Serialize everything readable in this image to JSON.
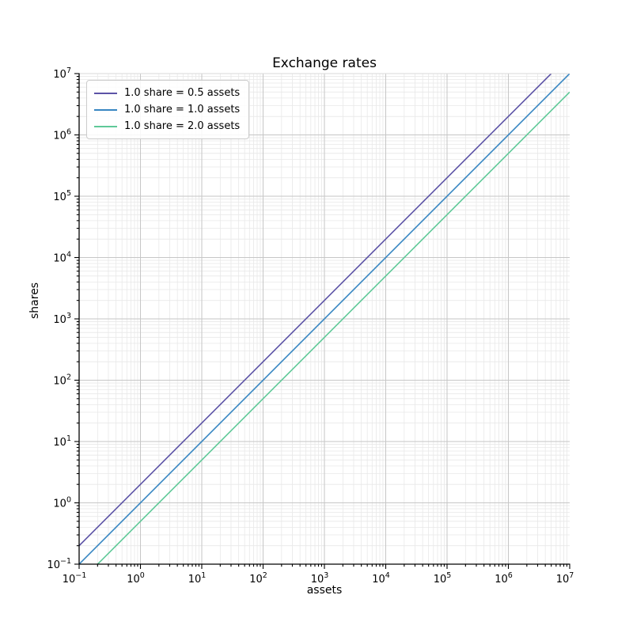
{
  "chart_data": {
    "type": "line",
    "title": "Exchange rates",
    "xlabel": "assets",
    "ylabel": "shares",
    "x_scale": "log",
    "y_scale": "log",
    "xlim": [
      0.1,
      10000000
    ],
    "ylim": [
      0.1,
      10000000
    ],
    "tick_exponents": [
      -1,
      0,
      1,
      2,
      3,
      4,
      5,
      6,
      7
    ],
    "grid": {
      "major": true,
      "minor": true,
      "major_color": "#c6c6c6",
      "minor_color": "#e8e8e8"
    },
    "legend_position": "upper left",
    "series": [
      {
        "label": "1.0 share = 0.5 assets",
        "color": "#5c53a6",
        "assets_per_share": 0.5,
        "points": [
          [
            0.1,
            0.2
          ],
          [
            1,
            2
          ],
          [
            100,
            200
          ],
          [
            10000,
            20000
          ],
          [
            1000000,
            2000000
          ],
          [
            5000000,
            10000000
          ]
        ]
      },
      {
        "label": "1.0 share = 1.0 assets",
        "color": "#3786c2",
        "assets_per_share": 1.0,
        "points": [
          [
            0.1,
            0.1
          ],
          [
            1,
            1
          ],
          [
            100,
            100
          ],
          [
            10000,
            10000
          ],
          [
            1000000,
            1000000
          ],
          [
            10000000,
            10000000
          ]
        ]
      },
      {
        "label": "1.0 share = 2.0 assets",
        "color": "#5fc998",
        "assets_per_share": 2.0,
        "points": [
          [
            0.2,
            0.1
          ],
          [
            1,
            0.5
          ],
          [
            100,
            50
          ],
          [
            10000,
            5000
          ],
          [
            1000000,
            500000
          ],
          [
            10000000,
            5000000
          ]
        ]
      }
    ],
    "colors": {
      "spine_dark": "#000000",
      "spine_light": "#d9d9d9",
      "background": "#ffffff"
    }
  }
}
